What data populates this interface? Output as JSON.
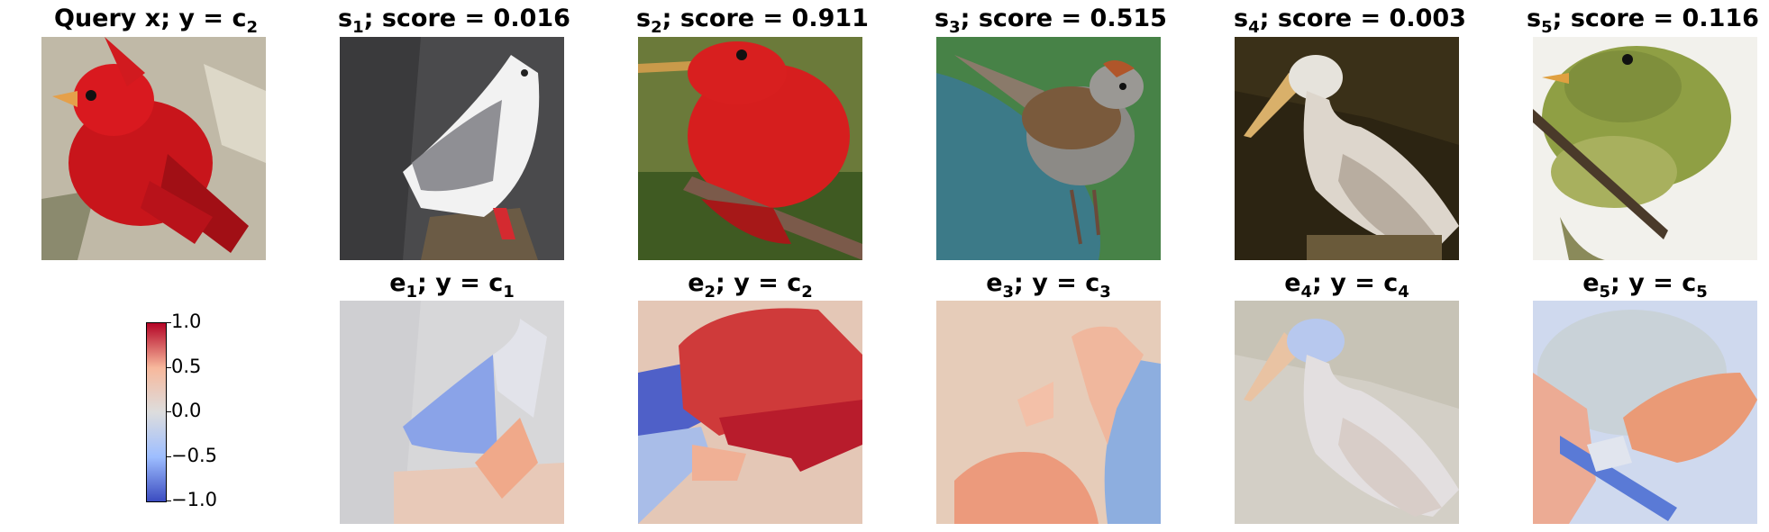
{
  "query": {
    "label": "Query x; y",
    "cls": "c",
    "cls_sub": "2"
  },
  "top": [
    {
      "s": "s",
      "sub": "1",
      "score_text": "; score = 0.016"
    },
    {
      "s": "s",
      "sub": "2",
      "score_text": "; score = 0.911"
    },
    {
      "s": "s",
      "sub": "3",
      "score_text": "; score = 0.515"
    },
    {
      "s": "s",
      "sub": "4",
      "score_text": "; score = 0.003"
    },
    {
      "s": "s",
      "sub": "5",
      "score_text": "; score = 0.116"
    }
  ],
  "bottom": [
    {
      "e": "e",
      "sub": "1",
      "y": "; y = ",
      "c": "c",
      "csub": "1"
    },
    {
      "e": "e",
      "sub": "2",
      "y": "; y = ",
      "c": "c",
      "csub": "2"
    },
    {
      "e": "e",
      "sub": "3",
      "y": "; y = ",
      "c": "c",
      "csub": "3"
    },
    {
      "e": "e",
      "sub": "4",
      "y": "; y = ",
      "c": "c",
      "csub": "4"
    },
    {
      "e": "e",
      "sub": "5",
      "y": "; y = ",
      "c": "c",
      "csub": "5"
    }
  ],
  "colorbar": {
    "ticks": [
      "1.0",
      "0.5",
      "0.0",
      "−0.5",
      "−1.0"
    ],
    "colors": [
      "#b40426",
      "#f7b89c",
      "#dddddd",
      "#9ebeff",
      "#3b4cc0"
    ]
  }
}
